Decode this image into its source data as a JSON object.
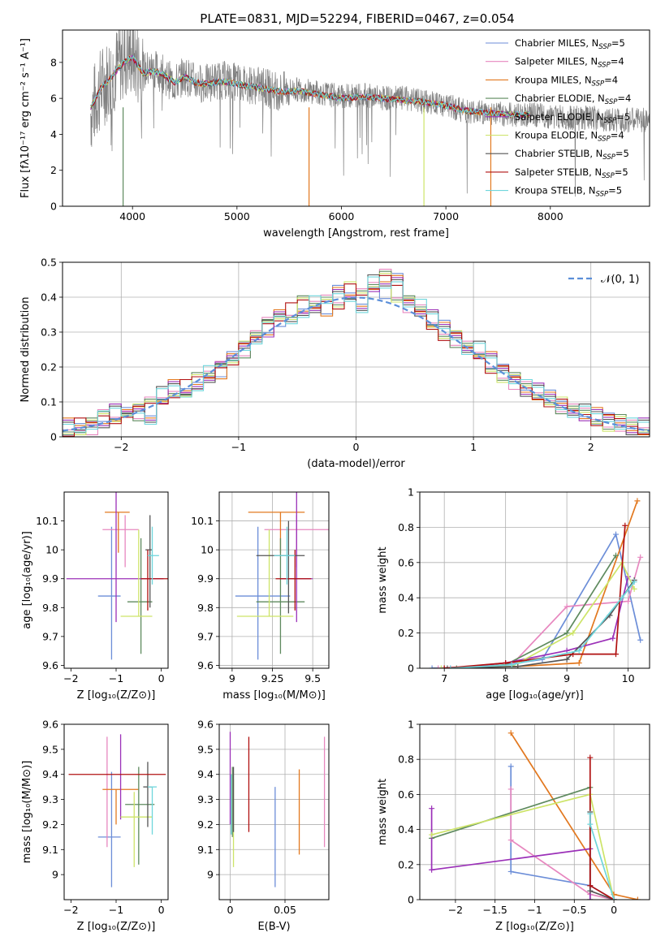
{
  "figure_title": "PLATE=0831, MJD=52294, FIBERID=0467, z=0.054",
  "colors": [
    "#6c8ed8",
    "#e787bf",
    "#e2781f",
    "#5e8a5e",
    "#9b30b8",
    "#cde468",
    "#555555",
    "#b01010",
    "#6fd6dc"
  ],
  "legend_entries": [
    {
      "base": "Chabrier MILES, N",
      "sub": "SSP",
      "tail": "=5"
    },
    {
      "base": "Salpeter MILES, N",
      "sub": "SSP",
      "tail": "=4"
    },
    {
      "base": "Kroupa MILES, N",
      "sub": "SSP",
      "tail": "=4"
    },
    {
      "base": "Chabrier ELODIE, N",
      "sub": "SSP",
      "tail": "=4"
    },
    {
      "base": "Salpeter ELODIE, N",
      "sub": "SSP",
      "tail": "=5"
    },
    {
      "base": "Kroupa ELODIE, N",
      "sub": "SSP",
      "tail": "=4"
    },
    {
      "base": "Chabrier STELIB, N",
      "sub": "SSP",
      "tail": "=5"
    },
    {
      "base": "Salpeter STELIB, N",
      "sub": "SSP",
      "tail": "=5"
    },
    {
      "base": "Kroupa STELIB, N",
      "sub": "SSP",
      "tail": "=5"
    }
  ],
  "chart_data": [
    {
      "panel": "spectrum",
      "type": "line",
      "xlabel": "wavelength [Angstrom, rest frame]",
      "ylabel": "Flux [fλ10⁻¹⁷ erg cm⁻² s⁻¹ A⁻¹]",
      "xlim": [
        3330,
        8950
      ],
      "ylim": [
        0,
        9.8
      ],
      "xticks": [
        4000,
        5000,
        6000,
        7000,
        8000
      ],
      "yticks": [
        0,
        2,
        4,
        6,
        8
      ],
      "grid": false,
      "legend": "top-right",
      "data_series": {
        "name": "data",
        "color": "#808080",
        "x": [
          3600,
          3700,
          3800,
          3900,
          4000,
          4100,
          4200,
          4300,
          4400,
          4500,
          4600,
          4700,
          4800,
          4900,
          5000,
          5200,
          5400,
          5600,
          5800,
          6000,
          6200,
          6400,
          6600,
          6800,
          7000,
          7200,
          7400,
          7600,
          7800,
          8000,
          8200,
          8400,
          8600,
          8800,
          8950
        ],
        "y": [
          5.2,
          6.6,
          7.3,
          8.2,
          8.4,
          7.5,
          7.7,
          7.3,
          6.8,
          7.3,
          6.9,
          6.8,
          7.0,
          7.0,
          6.9,
          6.7,
          6.4,
          6.5,
          6.3,
          6.1,
          6.2,
          6.0,
          6.0,
          5.8,
          5.6,
          5.3,
          5.2,
          5.1,
          5.1,
          5.0,
          4.9,
          4.9,
          4.8,
          4.8,
          4.8
        ]
      },
      "model_y": [
        5.5,
        6.6,
        7.2,
        7.9,
        8.3,
        7.4,
        7.5,
        7.3,
        6.9,
        7.2,
        6.9,
        6.8,
        6.9,
        6.9,
        6.8,
        6.6,
        6.4,
        6.4,
        6.2,
        6.0,
        6.1,
        6.0,
        5.9,
        5.8,
        5.6,
        5.3,
        5.2,
        5.1,
        5.1,
        5.0,
        5.0,
        4.9,
        4.9,
        4.8,
        4.8
      ],
      "dropouts": [
        {
          "x": 3910,
          "series": 3
        },
        {
          "x": 5690,
          "series": 2
        },
        {
          "x": 6790,
          "series": 5
        },
        {
          "x": 7430,
          "series": 2
        }
      ]
    },
    {
      "panel": "residuals",
      "type": "histogram",
      "xlabel": "(data-model)/error",
      "ylabel": "Normed distribution",
      "xlim": [
        -2.5,
        2.5
      ],
      "ylim": [
        0,
        0.5
      ],
      "xticks": [
        -2,
        -1,
        0,
        1,
        2
      ],
      "yticks": [
        0.0,
        0.1,
        0.2,
        0.3,
        0.4,
        0.5
      ],
      "grid": true,
      "legend": "top-right",
      "reference_label": "𝒩(0, 1)",
      "bin_width": 0.1,
      "series": [
        {
          "values": [
            0.03,
            0.02,
            0.04,
            0.05,
            0.07,
            0.06,
            0.08,
            0.06,
            0.12,
            0.14,
            0.12,
            0.15,
            0.18,
            0.19,
            0.22,
            0.26,
            0.29,
            0.31,
            0.34,
            0.33,
            0.36,
            0.38,
            0.37,
            0.41,
            0.4,
            0.38,
            0.44,
            0.42,
            0.45,
            0.39,
            0.37,
            0.34,
            0.31,
            0.29,
            0.26,
            0.25,
            0.22,
            0.19,
            0.17,
            0.14,
            0.13,
            0.11,
            0.09,
            0.08,
            0.07,
            0.06,
            0.05,
            0.04,
            0.03,
            0.03
          ]
        },
        {
          "values": [
            0.02,
            0.03,
            0.03,
            0.06,
            0.05,
            0.08,
            0.07,
            0.09,
            0.1,
            0.13,
            0.14,
            0.16,
            0.17,
            0.21,
            0.23,
            0.25,
            0.28,
            0.33,
            0.35,
            0.36,
            0.38,
            0.37,
            0.4,
            0.39,
            0.42,
            0.4,
            0.43,
            0.48,
            0.41,
            0.38,
            0.36,
            0.32,
            0.3,
            0.28,
            0.25,
            0.23,
            0.2,
            0.18,
            0.16,
            0.14,
            0.12,
            0.11,
            0.09,
            0.07,
            0.07,
            0.05,
            0.04,
            0.04,
            0.03,
            0.02
          ]
        }
      ]
    },
    {
      "panel": "age_vs_Z",
      "type": "scatter",
      "xlabel": "Z [log₁₀(Z/Z⊙)]",
      "ylabel": "age  [log₁₀(age/yr)]",
      "xlim": [
        -2.15,
        0.15
      ],
      "ylim": [
        9.59,
        10.2
      ],
      "xticks": [
        -2,
        -1,
        0
      ],
      "yticks": [
        9.6,
        9.7,
        9.8,
        9.9,
        10.0,
        10.1
      ],
      "grid": false,
      "points": [
        {
          "x": -1.1,
          "y": 9.84,
          "xerr": [
            0.3,
            0.2
          ],
          "yerr": [
            0.22,
            0.24
          ]
        },
        {
          "x": -0.8,
          "y": 10.07,
          "xerr": [
            0.5,
            0.3
          ],
          "yerr": [
            0.13,
            0.05
          ]
        },
        {
          "x": -0.95,
          "y": 10.13,
          "xerr": [
            0.3,
            0.25
          ],
          "yerr": [
            0.14,
            0.0
          ]
        },
        {
          "x": -0.45,
          "y": 9.82,
          "xerr": [
            0.3,
            0.25
          ],
          "yerr": [
            0.18,
            0.22
          ]
        },
        {
          "x": -1.0,
          "y": 9.9,
          "xerr": [
            1.1,
            1.05
          ],
          "yerr": [
            0.15,
            0.3
          ]
        },
        {
          "x": -0.5,
          "y": 9.77,
          "xerr": [
            0.4,
            0.3
          ],
          "yerr": [
            0.0,
            0.3
          ]
        },
        {
          "x": -0.25,
          "y": 10.0,
          "xerr": [
            0.1,
            0.05
          ],
          "yerr": [
            0.2,
            0.12
          ]
        },
        {
          "x": -0.3,
          "y": 9.9,
          "xerr": [
            0.15,
            0.5
          ],
          "yerr": [
            0.11,
            0.1
          ]
        },
        {
          "x": -0.2,
          "y": 9.98,
          "xerr": [
            0.1,
            0.15
          ],
          "yerr": [
            0.1,
            0.1
          ]
        }
      ]
    },
    {
      "panel": "age_vs_mass",
      "type": "scatter",
      "xlabel": "mass [log₁₀(M/M⊙)]",
      "ylabel": "",
      "xlim": [
        8.92,
        9.6
      ],
      "ylim": [
        9.59,
        10.2
      ],
      "xticks": [
        9.0,
        9.25,
        9.5
      ],
      "yticks": [
        9.6,
        9.7,
        9.8,
        9.9,
        10.0,
        10.1
      ],
      "grid": true,
      "points": [
        {
          "x": 9.16,
          "y": 9.84,
          "xerr": [
            0.14,
            0.2
          ],
          "yerr": [
            0.22,
            0.24
          ]
        },
        {
          "x": 9.4,
          "y": 10.07,
          "xerr": [
            0.2,
            0.2
          ],
          "yerr": [
            0.13,
            0.05
          ]
        },
        {
          "x": 9.3,
          "y": 10.13,
          "xerr": [
            0.2,
            0.15
          ],
          "yerr": [
            0.14,
            0.0
          ]
        },
        {
          "x": 9.3,
          "y": 9.82,
          "xerr": [
            0.15,
            0.15
          ],
          "yerr": [
            0.18,
            0.22
          ]
        },
        {
          "x": 9.4,
          "y": 9.9,
          "xerr": [
            0.1,
            0.1
          ],
          "yerr": [
            0.15,
            0.3
          ]
        },
        {
          "x": 9.23,
          "y": 9.77,
          "xerr": [
            0.2,
            0.15
          ],
          "yerr": [
            0.0,
            0.3
          ]
        },
        {
          "x": 9.35,
          "y": 9.98,
          "xerr": [
            0.2,
            0.1
          ],
          "yerr": [
            0.2,
            0.12
          ]
        },
        {
          "x": 9.39,
          "y": 9.9,
          "xerr": [
            0.12,
            0.1
          ],
          "yerr": [
            0.11,
            0.1
          ]
        },
        {
          "x": 9.34,
          "y": 9.98,
          "xerr": [
            0.08,
            0.05
          ],
          "yerr": [
            0.1,
            0.1
          ]
        }
      ]
    },
    {
      "panel": "weight_vs_age",
      "type": "line",
      "xlabel": "age  [log₁₀(age/yr)]",
      "ylabel": "mass weight",
      "xlim": [
        6.6,
        10.35
      ],
      "ylim": [
        0,
        1
      ],
      "xticks": [
        7,
        8,
        9,
        10
      ],
      "yticks": [
        0.0,
        0.2,
        0.4,
        0.6,
        0.8,
        1.0
      ],
      "grid": true,
      "series": [
        {
          "x": [
            6.8,
            7.8,
            8.6,
            9.8,
            10.2
          ],
          "y": [
            0.0,
            0.01,
            0.05,
            0.76,
            0.16
          ]
        },
        {
          "x": [
            6.9,
            8.1,
            9.0,
            10.0,
            10.2
          ],
          "y": [
            0.0,
            0.02,
            0.35,
            0.38,
            0.63
          ]
        },
        {
          "x": [
            7.0,
            8.2,
            9.2,
            10.15
          ],
          "y": [
            0.0,
            0.01,
            0.03,
            0.95
          ]
        },
        {
          "x": [
            7.2,
            8.0,
            9.0,
            9.8
          ],
          "y": [
            0.0,
            0.02,
            0.2,
            0.64
          ]
        },
        {
          "x": [
            7.1,
            8.0,
            9.0,
            9.75,
            10.0
          ],
          "y": [
            0.0,
            0.03,
            0.1,
            0.17,
            0.52
          ]
        },
        {
          "x": [
            6.95,
            8.1,
            9.1,
            9.9,
            10.1
          ],
          "y": [
            0.0,
            0.01,
            0.2,
            0.6,
            0.45
          ]
        },
        {
          "x": [
            7.05,
            8.2,
            9.0,
            9.7,
            10.1
          ],
          "y": [
            0.0,
            0.01,
            0.05,
            0.3,
            0.5
          ]
        },
        {
          "x": [
            7.0,
            8.0,
            9.1,
            9.8,
            9.95
          ],
          "y": [
            0.0,
            0.03,
            0.08,
            0.08,
            0.81
          ]
        },
        {
          "x": [
            7.1,
            8.1,
            9.2,
            9.9,
            10.1
          ],
          "y": [
            0.0,
            0.02,
            0.1,
            0.4,
            0.49
          ]
        }
      ]
    },
    {
      "panel": "mass_vs_Z",
      "type": "scatter",
      "xlabel": "Z [log₁₀(Z/Z⊙)]",
      "ylabel": "mass [log₁₀(M/M⊙)]",
      "xlim": [
        -2.15,
        0.15
      ],
      "ylim": [
        8.9,
        9.6
      ],
      "xticks": [
        -2,
        -1,
        0
      ],
      "yticks": [
        9.0,
        9.1,
        9.2,
        9.3,
        9.4,
        9.5,
        9.6
      ],
      "grid": false,
      "points": [
        {
          "x": -1.1,
          "y": 9.15,
          "xerr": [
            0.3,
            0.2
          ],
          "yerr": [
            0.2,
            0.26
          ]
        },
        {
          "x": -1.2,
          "y": 9.35,
          "xerr": [
            0.0,
            0.0
          ],
          "yerr": [
            0.24,
            0.2
          ]
        },
        {
          "x": -1.0,
          "y": 9.34,
          "xerr": [
            0.3,
            0.5
          ],
          "yerr": [
            0.14,
            0.0
          ]
        },
        {
          "x": -0.5,
          "y": 9.28,
          "xerr": [
            0.3,
            0.35
          ],
          "yerr": [
            0.24,
            0.15
          ]
        },
        {
          "x": -0.9,
          "y": 9.26,
          "xerr": [
            0.0,
            0.0
          ],
          "yerr": [
            0.04,
            0.3
          ]
        },
        {
          "x": -0.6,
          "y": 9.23,
          "xerr": [
            0.3,
            0.4
          ],
          "yerr": [
            0.2,
            0.1
          ]
        },
        {
          "x": -0.3,
          "y": 9.35,
          "xerr": [
            0.1,
            0.1
          ],
          "yerr": [
            0.16,
            0.1
          ]
        },
        {
          "x": -0.9,
          "y": 9.4,
          "xerr": [
            1.15,
            1.0
          ],
          "yerr": [
            0.0,
            0.0
          ]
        },
        {
          "x": -0.2,
          "y": 9.35,
          "xerr": [
            0.1,
            0.1
          ],
          "yerr": [
            0.19,
            0.0
          ]
        }
      ]
    },
    {
      "panel": "mass_vs_EBV",
      "type": "scatter",
      "xlabel": "E(B-V)",
      "ylabel": "",
      "xlim": [
        -0.01,
        0.09
      ],
      "ylim": [
        8.9,
        9.6
      ],
      "xticks": [
        0.0,
        0.05
      ],
      "yticks": [
        9.0,
        9.1,
        9.2,
        9.3,
        9.4,
        9.5,
        9.6
      ],
      "grid": true,
      "points": [
        {
          "x": 0.041,
          "y": 9.15,
          "yerr": [
            0.2,
            0.2
          ]
        },
        {
          "x": 0.086,
          "y": 9.35,
          "yerr": [
            0.24,
            0.2
          ]
        },
        {
          "x": 0.063,
          "y": 9.25,
          "yerr": [
            0.17,
            0.17
          ]
        },
        {
          "x": 0.002,
          "y": 9.3,
          "yerr": [
            0.15,
            0.13
          ]
        },
        {
          "x": 0.0,
          "y": 9.4,
          "yerr": [
            0.2,
            0.17
          ]
        },
        {
          "x": 0.003,
          "y": 9.23,
          "yerr": [
            0.2,
            0.15
          ]
        },
        {
          "x": 0.003,
          "y": 9.35,
          "yerr": [
            0.18,
            0.08
          ]
        },
        {
          "x": 0.017,
          "y": 9.4,
          "yerr": [
            0.23,
            0.15
          ]
        },
        {
          "x": 0.001,
          "y": 9.35,
          "yerr": [
            0.19,
            0.05
          ]
        }
      ]
    },
    {
      "panel": "weight_vs_Z",
      "type": "line",
      "xlabel": "Z [log₁₀(Z/Z⊙)]",
      "ylabel": "mass weight",
      "xlim": [
        -2.45,
        0.45
      ],
      "ylim": [
        0,
        1
      ],
      "xticks": [
        -2.0,
        -1.5,
        -1.0,
        -0.5,
        0.0
      ],
      "yticks": [
        0.0,
        0.2,
        0.4,
        0.6,
        0.8,
        1.0
      ],
      "grid": true,
      "series": [
        {
          "x": [
            -1.3,
            -1.3,
            -0.3,
            0.0
          ],
          "y": [
            0.76,
            0.16,
            0.08,
            0.0
          ]
        },
        {
          "x": [
            -1.3,
            -1.3,
            -0.3,
            0.0
          ],
          "y": [
            0.63,
            0.34,
            0.03,
            0.0
          ]
        },
        {
          "x": [
            -1.3,
            0.0,
            0.3
          ],
          "y": [
            0.95,
            0.03,
            0.0
          ]
        },
        {
          "x": [
            -2.3,
            -0.3,
            -0.3
          ],
          "y": [
            0.35,
            0.64,
            0.0
          ]
        },
        {
          "x": [
            -2.3,
            -2.3,
            -0.3,
            -0.3
          ],
          "y": [
            0.52,
            0.17,
            0.29,
            0.0
          ]
        },
        {
          "x": [
            -2.3,
            -0.3,
            0.0
          ],
          "y": [
            0.37,
            0.6,
            0.0
          ]
        },
        {
          "x": [
            -0.3,
            -0.3,
            0.0
          ],
          "y": [
            0.5,
            0.05,
            0.0
          ]
        },
        {
          "x": [
            -0.3,
            -0.3,
            0.0
          ],
          "y": [
            0.81,
            0.08,
            0.0
          ]
        },
        {
          "x": [
            -0.3,
            -0.3,
            0.0
          ],
          "y": [
            0.49,
            0.43,
            0.0
          ]
        }
      ]
    }
  ]
}
